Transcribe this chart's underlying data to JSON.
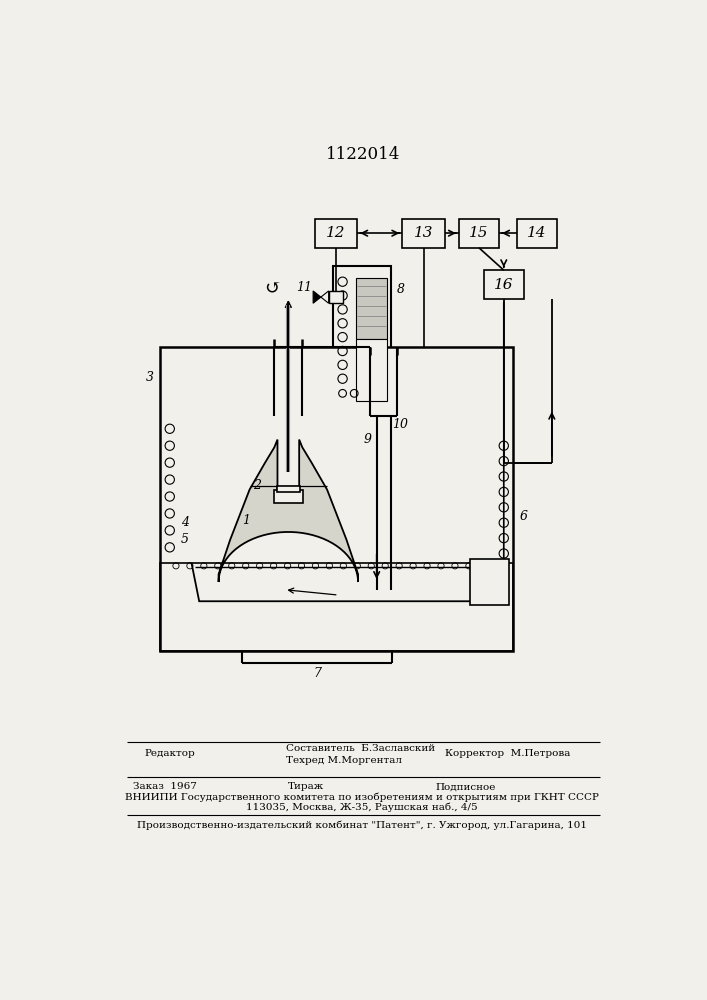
{
  "patent_number": "1122014",
  "bg_color": "#f2f0eb",
  "line_color": "#000000",
  "footer_line1_left": "Редактор",
  "footer_line1_center1": "Составитель  Б.Заславский",
  "footer_line1_center2": "Техред М.Моргентал",
  "footer_line1_right": "Корректор  М.Петрова",
  "footer_line2_left": "Заказ  1967",
  "footer_line2_center": "Тираж",
  "footer_line2_right": "Подписное",
  "footer_line3": "ВНИИПИ Государственного комитета по изобретениям и открытиям при ГКНТ СССР",
  "footer_line4": "113035, Москва, Ж-35, Раушская наб., 4/5",
  "footer_line5": "Производственно-издательский комбинат \"Патент\", г. Ужгород, ул.Гагарина, 101"
}
